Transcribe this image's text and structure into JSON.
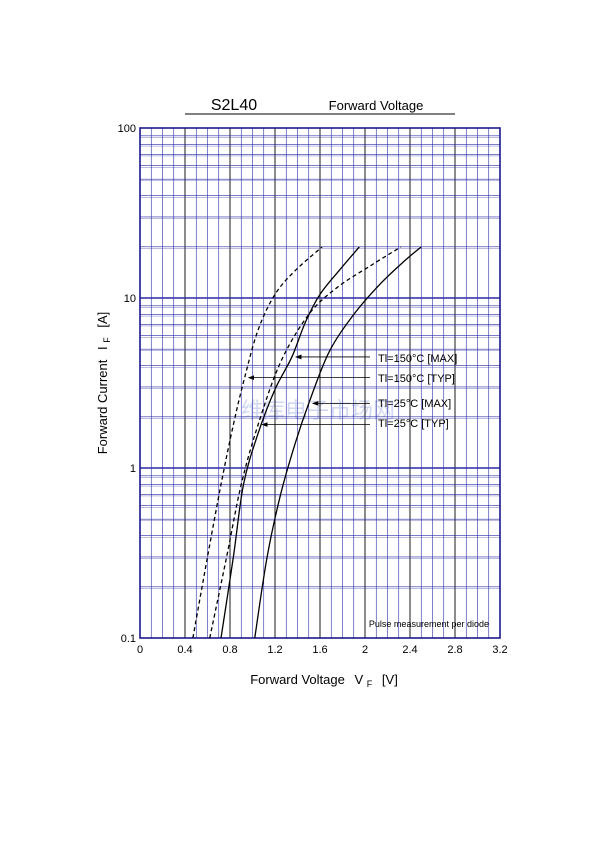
{
  "chart_data": {
    "type": "line",
    "title": "S2L40",
    "subtitle": "Forward Voltage",
    "xlabel": "Forward Voltage",
    "xlabel_symbol": "V",
    "xlabel_subscript": "F",
    "xlabel_unit": "[V]",
    "ylabel": "Forward Current",
    "ylabel_symbol": "I",
    "ylabel_subscript": "F",
    "ylabel_unit": "[A]",
    "xlim": [
      0,
      3.2
    ],
    "ylim": [
      0.1,
      100
    ],
    "y_scale": "log",
    "grid": true,
    "x_ticks": [
      0,
      0.4,
      0.8,
      1.2,
      1.6,
      2,
      2.4,
      2.8,
      3.2
    ],
    "x_tick_labels": [
      "0",
      "0.4",
      "0.8",
      "1.2",
      "1.6",
      "2",
      "2.4",
      "2.8",
      "3.2"
    ],
    "y_ticks": [
      0.1,
      1,
      10,
      100
    ],
    "y_tick_labels": [
      "0.1",
      "1",
      "10",
      "100"
    ],
    "note": "Pulse measurement per diode",
    "series": [
      {
        "name": "Tl=150°C [TYP]",
        "style": "dashed",
        "arrow_to": {
          "x": 0.93,
          "y": 3.4
        },
        "points": [
          [
            0.47,
            0.1
          ],
          [
            0.6,
            0.3
          ],
          [
            0.72,
            0.8
          ],
          [
            0.83,
            1.8
          ],
          [
            0.93,
            3.4
          ],
          [
            1.05,
            6.5
          ],
          [
            1.2,
            10.5
          ],
          [
            1.38,
            14.5
          ],
          [
            1.62,
            20
          ]
        ]
      },
      {
        "name": "Tl=150°C [MAX]",
        "style": "solid",
        "arrow_to": {
          "x": 1.35,
          "y": 4.5
        },
        "points": [
          [
            0.72,
            0.1
          ],
          [
            0.83,
            0.3
          ],
          [
            0.92,
            0.8
          ],
          [
            1.05,
            1.6
          ],
          [
            1.2,
            2.9
          ],
          [
            1.35,
            4.5
          ],
          [
            1.47,
            7.2
          ],
          [
            1.6,
            10.5
          ],
          [
            1.77,
            14.5
          ],
          [
            1.95,
            20
          ]
        ]
      },
      {
        "name": "Tl=25°C [TYP]",
        "style": "dashed",
        "arrow_to": {
          "x": 1.05,
          "y": 1.8
        },
        "points": [
          [
            0.62,
            0.1
          ],
          [
            0.77,
            0.3
          ],
          [
            0.9,
            0.8
          ],
          [
            1.05,
            1.8
          ],
          [
            1.25,
            4.2
          ],
          [
            1.5,
            8
          ],
          [
            1.75,
            11.5
          ],
          [
            2.05,
            15.5
          ],
          [
            2.32,
            20
          ]
        ]
      },
      {
        "name": "Tl=25°C [MAX]",
        "style": "solid",
        "arrow_to": {
          "x": 1.5,
          "y": 2.4
        },
        "points": [
          [
            1.02,
            0.1
          ],
          [
            1.13,
            0.3
          ],
          [
            1.25,
            0.7
          ],
          [
            1.38,
            1.4
          ],
          [
            1.5,
            2.4
          ],
          [
            1.68,
            4.8
          ],
          [
            1.9,
            8
          ],
          [
            2.13,
            12
          ],
          [
            2.35,
            16.5
          ],
          [
            2.5,
            20
          ]
        ]
      }
    ]
  },
  "watermark": "维库电子市场网",
  "colors": {
    "grid": "#2b2ba6",
    "axis": "#1a1a8c",
    "curve": "#000000",
    "watermark": "#aab8e8"
  }
}
